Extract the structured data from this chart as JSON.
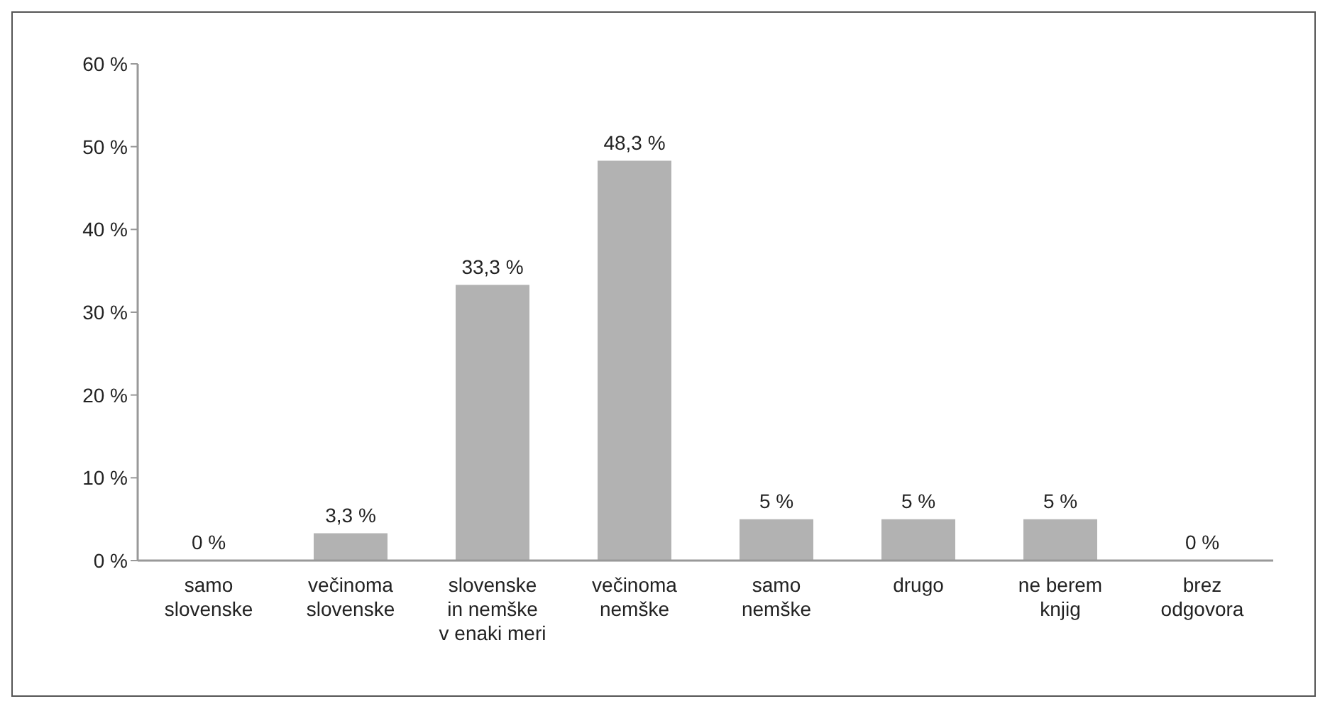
{
  "chart_data": {
    "type": "bar",
    "categories": [
      "samo\nslovenske",
      "večinoma\nslovenske",
      "slovenske\nin nemške\nv enaki meri",
      "večinoma\nnemške",
      "samo\nnemške",
      "drugo",
      "ne berem\nknjig",
      "brez\nodgovora"
    ],
    "values": [
      0,
      3.3,
      33.3,
      48.3,
      5,
      5,
      5,
      0
    ],
    "value_labels": [
      "0 %",
      "3,3 %",
      "33,3 %",
      "48,3 %",
      "5 %",
      "5 %",
      "5 %",
      "0 %"
    ],
    "color": "#b2b2b2",
    "ylim": [
      0,
      60
    ],
    "yticks": [
      {
        "value": 0,
        "label": "0 %"
      },
      {
        "value": 10,
        "label": "10 %"
      },
      {
        "value": 20,
        "label": "20 %"
      },
      {
        "value": 30,
        "label": "30 %"
      },
      {
        "value": 40,
        "label": "40 %"
      },
      {
        "value": 50,
        "label": "50 %"
      },
      {
        "value": 60,
        "label": "60 %"
      }
    ],
    "grid": false,
    "legend": false
  }
}
